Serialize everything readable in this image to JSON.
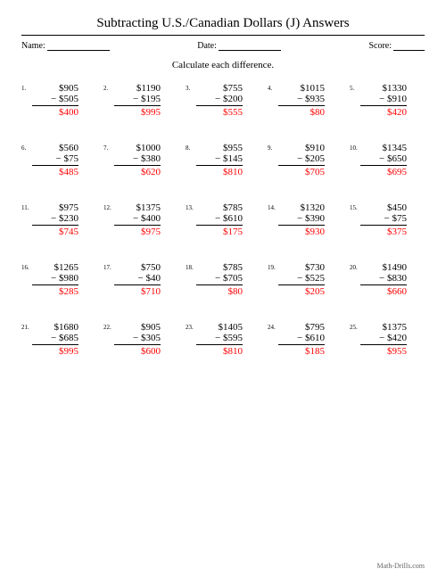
{
  "title": "Subtracting U.S./Canadian Dollars (J) Answers",
  "header": {
    "name_label": "Name:",
    "date_label": "Date:",
    "score_label": "Score:"
  },
  "instruction": "Calculate each difference.",
  "footer": "Math-Drills.com",
  "answer_color": "#ff0000",
  "problems": [
    {
      "n": "1.",
      "a": "$905",
      "b": "− $505",
      "r": "$400"
    },
    {
      "n": "2.",
      "a": "$1190",
      "b": "− $195",
      "r": "$995"
    },
    {
      "n": "3.",
      "a": "$755",
      "b": "− $200",
      "r": "$555"
    },
    {
      "n": "4.",
      "a": "$1015",
      "b": "− $935",
      "r": "$80"
    },
    {
      "n": "5.",
      "a": "$1330",
      "b": "− $910",
      "r": "$420"
    },
    {
      "n": "6.",
      "a": "$560",
      "b": "− $75",
      "r": "$485"
    },
    {
      "n": "7.",
      "a": "$1000",
      "b": "− $380",
      "r": "$620"
    },
    {
      "n": "8.",
      "a": "$955",
      "b": "− $145",
      "r": "$810"
    },
    {
      "n": "9.",
      "a": "$910",
      "b": "− $205",
      "r": "$705"
    },
    {
      "n": "10.",
      "a": "$1345",
      "b": "− $650",
      "r": "$695"
    },
    {
      "n": "11.",
      "a": "$975",
      "b": "− $230",
      "r": "$745"
    },
    {
      "n": "12.",
      "a": "$1375",
      "b": "− $400",
      "r": "$975"
    },
    {
      "n": "13.",
      "a": "$785",
      "b": "− $610",
      "r": "$175"
    },
    {
      "n": "14.",
      "a": "$1320",
      "b": "− $390",
      "r": "$930"
    },
    {
      "n": "15.",
      "a": "$450",
      "b": "− $75",
      "r": "$375"
    },
    {
      "n": "16.",
      "a": "$1265",
      "b": "− $980",
      "r": "$285"
    },
    {
      "n": "17.",
      "a": "$750",
      "b": "− $40",
      "r": "$710"
    },
    {
      "n": "18.",
      "a": "$785",
      "b": "− $705",
      "r": "$80"
    },
    {
      "n": "19.",
      "a": "$730",
      "b": "− $525",
      "r": "$205"
    },
    {
      "n": "20.",
      "a": "$1490",
      "b": "− $830",
      "r": "$660"
    },
    {
      "n": "21.",
      "a": "$1680",
      "b": "− $685",
      "r": "$995"
    },
    {
      "n": "22.",
      "a": "$905",
      "b": "− $305",
      "r": "$600"
    },
    {
      "n": "23.",
      "a": "$1405",
      "b": "− $595",
      "r": "$810"
    },
    {
      "n": "24.",
      "a": "$795",
      "b": "− $610",
      "r": "$185"
    },
    {
      "n": "25.",
      "a": "$1375",
      "b": "− $420",
      "r": "$955"
    }
  ]
}
